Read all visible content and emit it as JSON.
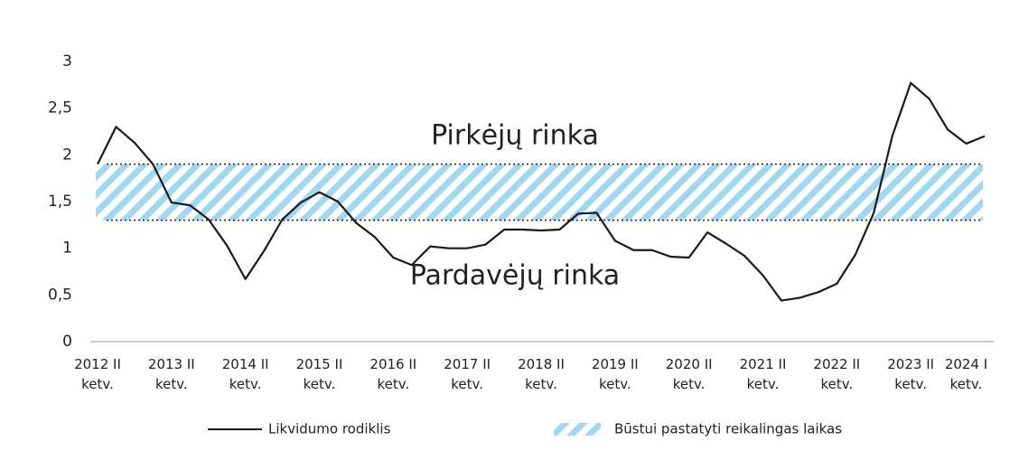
{
  "chart_data": {
    "type": "line",
    "categories": [
      "2012 II ketv.",
      null,
      null,
      null,
      "2013 II ketv.",
      null,
      null,
      null,
      "2014 II ketv.",
      null,
      null,
      null,
      "2015 II ketv.",
      null,
      null,
      null,
      "2016 II ketv.",
      null,
      null,
      null,
      "2017 II ketv.",
      null,
      null,
      null,
      "2018 II ketv.",
      null,
      null,
      null,
      "2019 II ketv.",
      null,
      null,
      null,
      "2020 II ketv.",
      null,
      null,
      null,
      "2021 II ketv.",
      null,
      null,
      null,
      "2022 II ketv.",
      null,
      null,
      null,
      "2023 II ketv.",
      null,
      null,
      "2024 I ketv.",
      null
    ],
    "series": [
      {
        "name": "Likvidumo rodiklis",
        "color": "#1a1a1a",
        "values": [
          1.9,
          2.3,
          2.13,
          1.9,
          1.49,
          1.46,
          1.31,
          1.03,
          0.67,
          0.97,
          1.31,
          1.49,
          1.6,
          1.5,
          1.27,
          1.12,
          0.9,
          0.82,
          1.02,
          1.0,
          1.0,
          1.04,
          1.2,
          1.2,
          1.19,
          1.2,
          1.37,
          1.38,
          1.08,
          0.98,
          0.98,
          0.91,
          0.9,
          1.17,
          1.05,
          0.92,
          0.71,
          0.44,
          0.47,
          0.53,
          0.62,
          0.93,
          1.38,
          2.2,
          2.77,
          2.6,
          2.27,
          2.12,
          2.2
        ]
      }
    ],
    "band": {
      "name": "Būstui pastatyti reikalingas laikas",
      "color": "#9fd8ef",
      "range": [
        1.3,
        1.9
      ]
    },
    "annotations": [
      "Pirkėjų rinka",
      "Pardavėjų rinka"
    ],
    "ylim": [
      0,
      3
    ],
    "yticks": [
      0,
      {
        "value": 0.5,
        "label": "0,5"
      },
      1,
      {
        "value": 1.5,
        "label": "1,5"
      },
      2,
      {
        "value": 2.5,
        "label": "2,5"
      },
      3
    ],
    "grid": false
  }
}
